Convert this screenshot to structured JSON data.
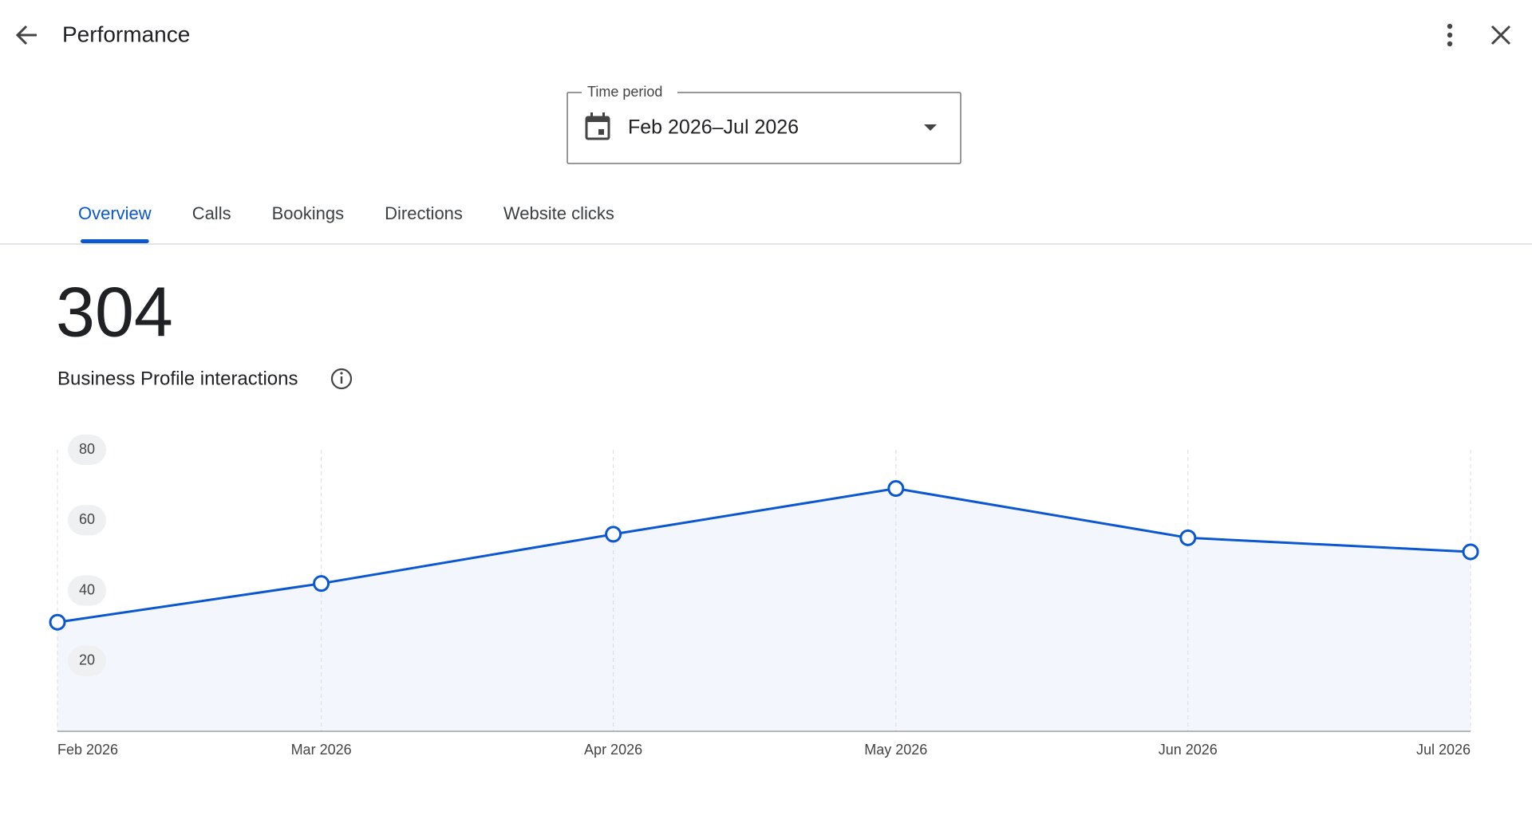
{
  "header": {
    "title": "Performance"
  },
  "time_period": {
    "label": "Time period",
    "value": "Feb 2026–Jul 2026"
  },
  "tabs": [
    "Overview",
    "Calls",
    "Bookings",
    "Directions",
    "Website clicks"
  ],
  "active_tab": 0,
  "summary": {
    "value": 304,
    "label": "Business Profile interactions"
  },
  "chart_data": {
    "type": "line",
    "x": [
      "Feb 2026",
      "Mar 2026",
      "Apr 2026",
      "May 2026",
      "Jun 2026",
      "Jul 2026"
    ],
    "values": [
      31,
      42,
      56,
      69,
      55,
      51
    ],
    "color": "#0b57d0",
    "ylim": [
      0,
      80
    ],
    "yticks": [
      20,
      40,
      60,
      80
    ],
    "grid": true
  }
}
